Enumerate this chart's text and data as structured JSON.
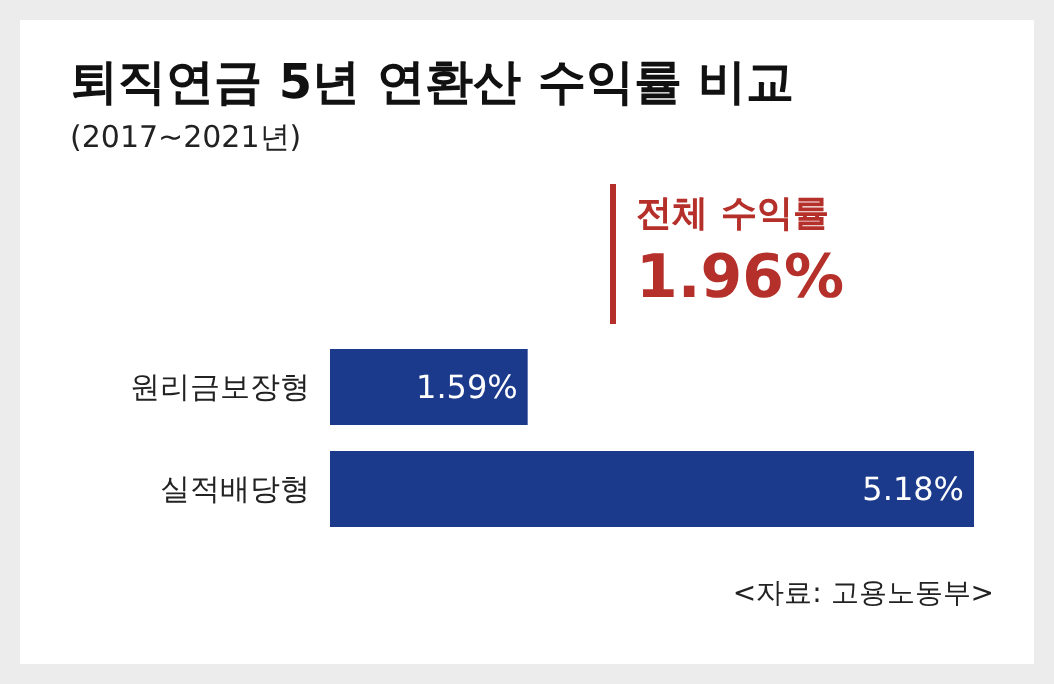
{
  "chart_data": {
    "type": "bar",
    "orientation": "horizontal",
    "title": "퇴직연금 5년 연환산 수익률 비교",
    "subtitle": "(2017~2021년)",
    "categories": [
      "원리금보장형",
      "실적배당형"
    ],
    "values": [
      1.59,
      5.18
    ],
    "value_labels": [
      "1.59%",
      "5.18%"
    ],
    "color": "#1b3a8c",
    "xlim": [
      0,
      5.18
    ],
    "annotations": [
      "전체 수익률",
      "1.96%",
      "<자료: 고용노동부>"
    ]
  }
}
